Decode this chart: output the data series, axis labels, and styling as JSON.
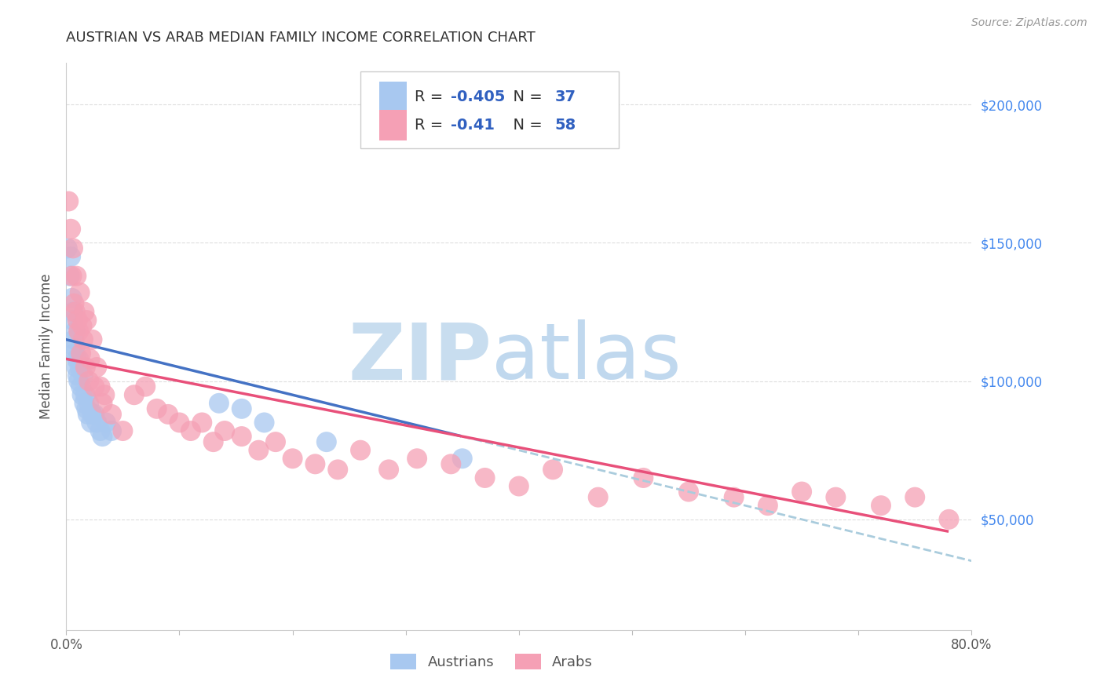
{
  "title": "AUSTRIAN VS ARAB MEDIAN FAMILY INCOME CORRELATION CHART",
  "source": "Source: ZipAtlas.com",
  "ylabel": "Median Family Income",
  "ytick_labels": [
    "$200,000",
    "$150,000",
    "$100,000",
    "$50,000"
  ],
  "ytick_values": [
    200000,
    150000,
    100000,
    50000
  ],
  "xmin": 0.0,
  "xmax": 0.8,
  "ymin": 10000,
  "ymax": 215000,
  "austrians_R": -0.405,
  "austrians_N": 37,
  "arabs_R": -0.41,
  "arabs_N": 58,
  "austrians_color": "#A8C8F0",
  "arabs_color": "#F5A0B5",
  "austrians_line_color": "#4472C4",
  "arabs_line_color": "#E8507A",
  "dashed_line_color": "#AACCDD",
  "legend_text_color": "#3060C0",
  "watermark_zip_color": "#C8DDEF",
  "watermark_atlas_color": "#C0D8EE",
  "background_color": "#FFFFFF",
  "grid_color": "#DDDDDD",
  "aus_intercept": 115000,
  "aus_slope": -100000,
  "arab_intercept": 108000,
  "arab_slope": -80000,
  "austrians_x": [
    0.001,
    0.003,
    0.004,
    0.005,
    0.006,
    0.006,
    0.007,
    0.007,
    0.008,
    0.008,
    0.009,
    0.009,
    0.01,
    0.011,
    0.011,
    0.012,
    0.013,
    0.014,
    0.015,
    0.016,
    0.017,
    0.018,
    0.019,
    0.02,
    0.022,
    0.023,
    0.025,
    0.027,
    0.03,
    0.032,
    0.035,
    0.04,
    0.135,
    0.155,
    0.175,
    0.23,
    0.35
  ],
  "austrians_y": [
    148000,
    138000,
    145000,
    130000,
    125000,
    122000,
    115000,
    110000,
    118000,
    112000,
    108000,
    105000,
    102000,
    108000,
    100000,
    105000,
    98000,
    95000,
    102000,
    92000,
    95000,
    90000,
    88000,
    92000,
    85000,
    88000,
    88000,
    85000,
    82000,
    80000,
    85000,
    82000,
    92000,
    90000,
    85000,
    78000,
    72000
  ],
  "arabs_x": [
    0.002,
    0.004,
    0.005,
    0.006,
    0.007,
    0.008,
    0.009,
    0.01,
    0.011,
    0.012,
    0.013,
    0.014,
    0.015,
    0.016,
    0.017,
    0.018,
    0.02,
    0.021,
    0.023,
    0.025,
    0.027,
    0.03,
    0.032,
    0.034,
    0.04,
    0.05,
    0.06,
    0.07,
    0.08,
    0.09,
    0.1,
    0.11,
    0.12,
    0.13,
    0.14,
    0.155,
    0.17,
    0.185,
    0.2,
    0.22,
    0.24,
    0.26,
    0.285,
    0.31,
    0.34,
    0.37,
    0.4,
    0.43,
    0.47,
    0.51,
    0.55,
    0.59,
    0.62,
    0.65,
    0.68,
    0.72,
    0.75,
    0.78
  ],
  "arabs_y": [
    165000,
    155000,
    138000,
    148000,
    128000,
    125000,
    138000,
    122000,
    118000,
    132000,
    110000,
    120000,
    115000,
    125000,
    105000,
    122000,
    100000,
    108000,
    115000,
    98000,
    105000,
    98000,
    92000,
    95000,
    88000,
    82000,
    95000,
    98000,
    90000,
    88000,
    85000,
    82000,
    85000,
    78000,
    82000,
    80000,
    75000,
    78000,
    72000,
    70000,
    68000,
    75000,
    68000,
    72000,
    70000,
    65000,
    62000,
    68000,
    58000,
    65000,
    60000,
    58000,
    55000,
    60000,
    58000,
    55000,
    58000,
    50000
  ]
}
